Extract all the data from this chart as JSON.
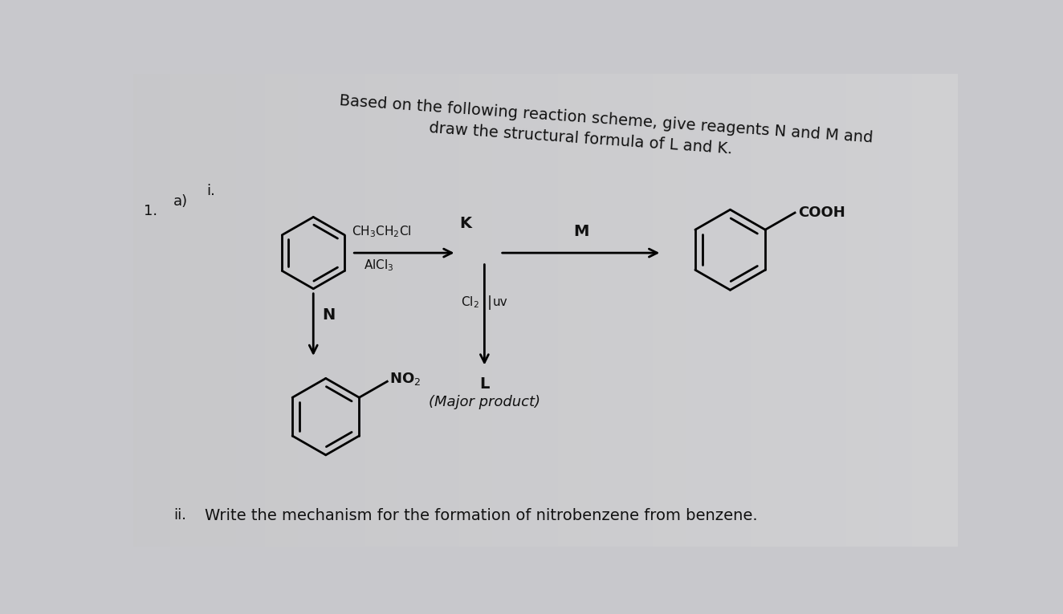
{
  "bg_color": "#c8c8cc",
  "title_line1": "Based on the following reaction scheme, give reagents N and M and",
  "title_line2": "draw the structural formula of L and K.",
  "label_1": "1.",
  "label_a": "a)",
  "label_i": "i.",
  "label_ii": "ii.",
  "reagent_above": "CH$_3$CH$_2$Cl",
  "reagent_below": "AlCl$_3$",
  "label_K": "K",
  "label_M": "M",
  "label_N": "N",
  "label_L": "L",
  "label_major": "(Major product)",
  "label_COOH": "COOH",
  "label_NO2": "NO$_2$",
  "reagent_cl2": "Cl$_2$",
  "reagent_uv": "uv",
  "write_mechanism": "Write the mechanism for the formation of nitrobenzene from benzene.",
  "font_color": "#111111",
  "font_size_title": 14,
  "font_size_body": 13,
  "font_size_chem": 12
}
